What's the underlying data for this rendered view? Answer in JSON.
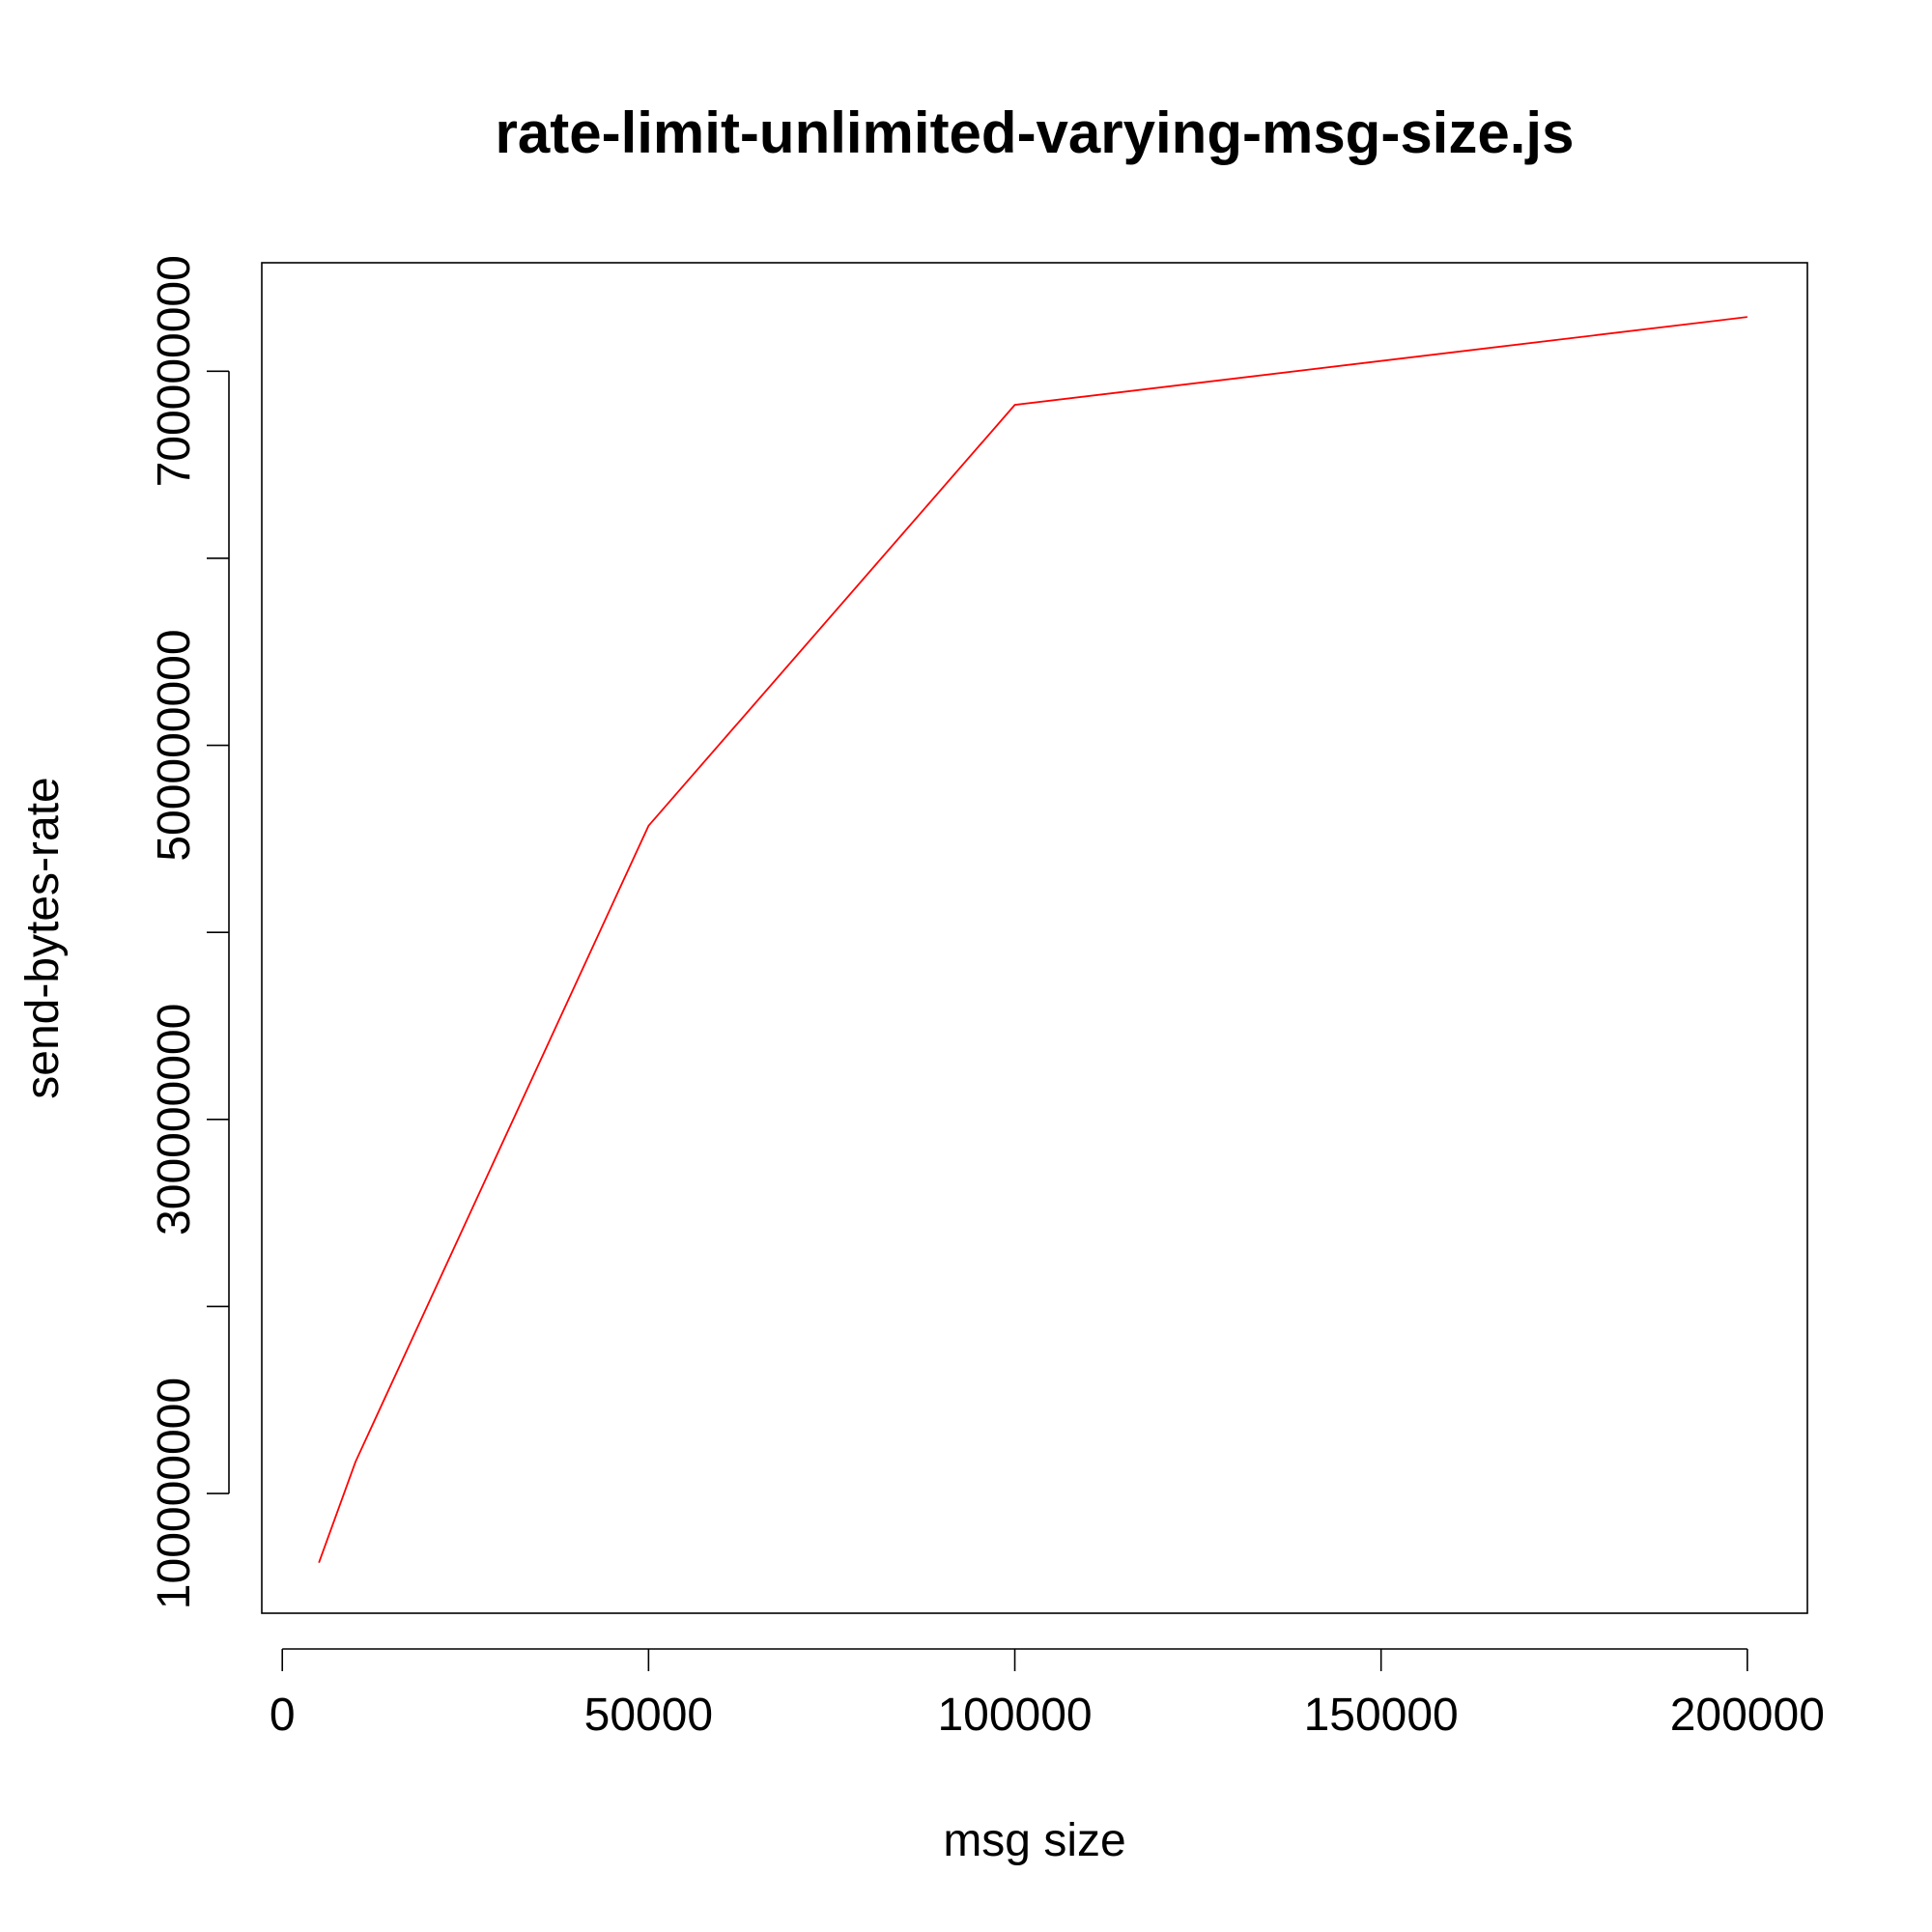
{
  "chart_data": {
    "type": "line",
    "title": "rate-limit-unlimited-varying-msg-size.js",
    "xlabel": "msg size",
    "ylabel": "send-bytes-rate",
    "xlim": [
      -2800,
      208200
    ],
    "ylim": [
      36000000,
      758000000
    ],
    "x_ticks": [
      0,
      50000,
      100000,
      150000,
      200000
    ],
    "x_tick_labels": [
      "0",
      "50000",
      "100000",
      "150000",
      "200000"
    ],
    "y_ticks": [
      100000000,
      200000000,
      300000000,
      400000000,
      500000000,
      600000000,
      700000000
    ],
    "y_tick_labels": [
      "100000000",
      "",
      "300000000",
      "",
      "500000000",
      "",
      "700000000"
    ],
    "grid": false,
    "legend": "none",
    "series": [
      {
        "color": "#ff0000",
        "x": [
          5000,
          10000,
          50000,
          100000,
          200000
        ],
        "y": [
          63000000,
          117000000,
          457000000,
          682000000,
          729000000
        ]
      }
    ]
  }
}
